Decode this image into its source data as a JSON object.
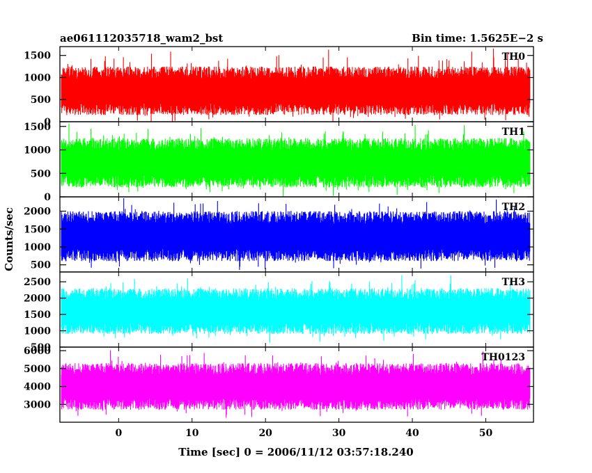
{
  "header": {
    "title": "ae061112035718_wam2_bst",
    "bin_time": "Bin time: 1.5625E−2 s"
  },
  "chart_data": {
    "type": "line",
    "title": "ae061112035718_wam2_bst",
    "subtitle": "Bin time: 1.5625E−2 s",
    "xlabel": "Time [sec] 0 = 2006/11/12 03:57:18.240",
    "ylabel": "Counts/sec",
    "xlim": [
      -8,
      56.5
    ],
    "xdata_range": [
      -7.8,
      56.0
    ],
    "xticks": [
      0,
      10,
      20,
      30,
      40,
      50
    ],
    "xtick_labels": [
      "0",
      "10",
      "20",
      "30",
      "40",
      "50"
    ],
    "panels": [
      {
        "name": "TH0",
        "color": "#ff0000",
        "ylim": [
          0,
          1700
        ],
        "yticks": [
          0,
          500,
          1000,
          1500
        ],
        "ytick_labels": [
          "0",
          "500",
          "1000",
          "1500"
        ],
        "typical_low": 150,
        "typical_high": 1250,
        "peak_max": 1700
      },
      {
        "name": "TH1",
        "color": "#00ff00",
        "ylim": [
          0,
          1600
        ],
        "yticks": [
          0,
          500,
          1000,
          1500
        ],
        "ytick_labels": [
          "0",
          "500",
          "1000",
          "1500"
        ],
        "typical_low": 200,
        "typical_high": 1250,
        "peak_max": 1600
      },
      {
        "name": "TH2",
        "color": "#0000ff",
        "ylim": [
          300,
          2400
        ],
        "yticks": [
          500,
          1000,
          1500,
          2000
        ],
        "ytick_labels": [
          "500",
          "1000",
          "1500",
          "2000"
        ],
        "typical_low": 600,
        "typical_high": 2000,
        "peak_max": 2400
      },
      {
        "name": "TH3",
        "color": "#00ffff",
        "ylim": [
          500,
          2800
        ],
        "yticks": [
          500,
          1000,
          1500,
          2000,
          2500
        ],
        "ytick_labels": [
          "500",
          "1000",
          "1500",
          "2000",
          "2500"
        ],
        "typical_low": 900,
        "typical_high": 2300,
        "peak_max": 2800
      },
      {
        "name": "TH0123",
        "color": "#ff00ff",
        "ylim": [
          2000,
          6200
        ],
        "yticks": [
          3000,
          4000,
          5000,
          6000
        ],
        "ytick_labels": [
          "3000",
          "4000",
          "5000",
          "6000"
        ],
        "typical_low": 2700,
        "typical_high": 5300,
        "peak_max": 6100
      }
    ]
  }
}
